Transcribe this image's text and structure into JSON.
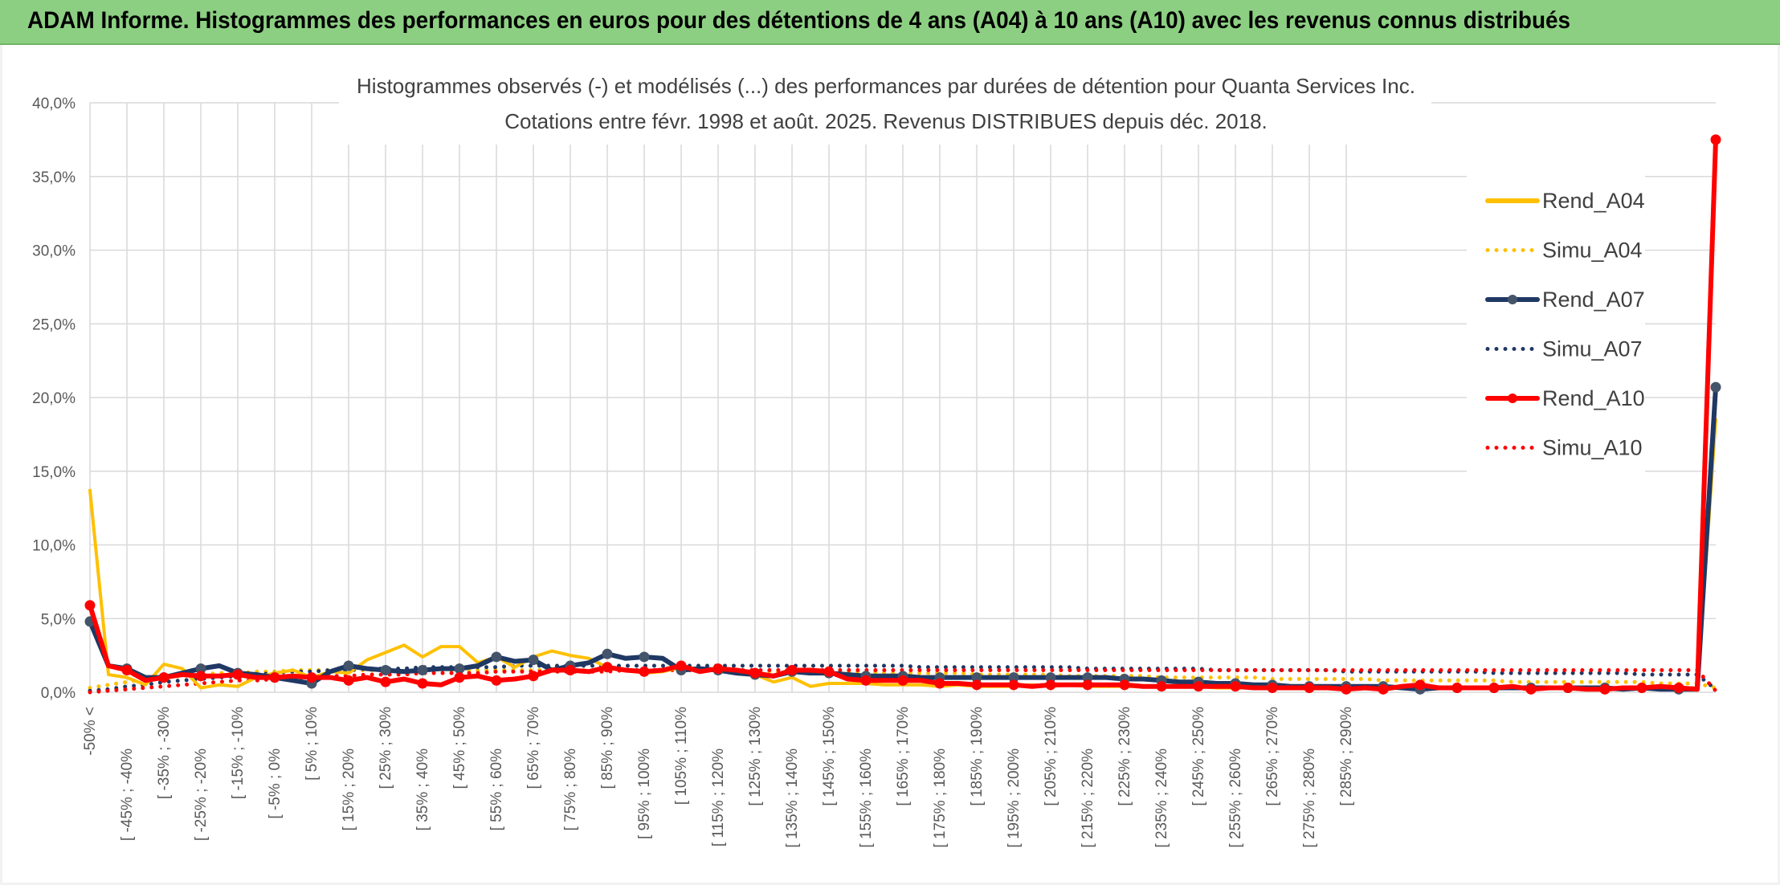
{
  "header": {
    "title": "ADAM Informe. Histogrammes des performances en euros pour des détentions de 4 ans (A04) à 10 ans (A10) avec les revenus connus distribués"
  },
  "chart_data": {
    "type": "line",
    "title": "Histogrammes observés (-) et modélisés (...) des performances par durées de détention pour Quanta Services Inc.",
    "subtitle": "Cotations entre févr. 1998 et août. 2025. Revenus DISTRIBUES depuis déc. 2018.",
    "xlabel": "",
    "ylabel": "",
    "ylim": [
      0,
      40
    ],
    "yticks": [
      "0,0%",
      "5,0%",
      "10,0%",
      "15,0%",
      "20,0%",
      "25,0%",
      "30,0%",
      "35,0%",
      "40,0%"
    ],
    "grid": true,
    "legend_position": "right",
    "x_tick_labels": [
      "-50% <",
      "[ -45% ; -40%",
      "[ -35% ; -30%",
      "[ -25% ; -20%",
      "[ -15% ; -10%",
      "[ -5% ; 0%",
      "[ 5% ; 10%",
      "[ 15% ; 20%",
      "[ 25% ; 30%",
      "[ 35% ; 40%",
      "[ 45% ; 50%",
      "[ 55% ; 60%",
      "[ 65% ; 70%",
      "[ 75% ; 80%",
      "[ 85% ; 90%",
      "[ 95% ; 100%",
      "[ 105% ; 110%",
      "[ 115% ; 120%",
      "[ 125% ; 130%",
      "[ 135% ; 140%",
      "[ 145% ; 150%",
      "[ 155% ; 160%",
      "[ 165% ; 170%",
      "[ 175% ; 180%",
      "[ 185% ; 190%",
      "[ 195% ; 200%",
      "[ 205% ; 210%",
      "[ 215% ; 220%",
      "[ 225% ; 230%",
      "[ 235% ; 240%",
      "[ 245% ; 250%",
      "[ 255% ; 260%",
      "[ 265% ; 270%",
      "[ 275% ; 280%",
      "[ 285% ; 290%"
    ],
    "series": [
      {
        "name": "Rend_A04",
        "style": "solid",
        "color": "#ffc000",
        "markers": false,
        "values": [
          13.7,
          1.2,
          1.0,
          0.5,
          1.9,
          1.6,
          0.3,
          0.5,
          0.4,
          1.0,
          1.3,
          1.5,
          1.0,
          1.4,
          1.3,
          2.2,
          2.7,
          3.2,
          2.4,
          3.1,
          3.1,
          2.0,
          2.4,
          1.7,
          2.4,
          2.8,
          2.5,
          2.3,
          1.7,
          1.5,
          1.3,
          1.4,
          1.7,
          1.6,
          1.5,
          1.4,
          1.2,
          0.7,
          1.0,
          0.4,
          0.6,
          0.6,
          0.6,
          0.5,
          0.5,
          0.5,
          0.4,
          0.5,
          0.4,
          0.4,
          0.4,
          0.5,
          0.4,
          0.5,
          0.4,
          0.4,
          0.4,
          0.4,
          0.4,
          0.4,
          0.4,
          0.3,
          0.3,
          0.3,
          0.3,
          0.3,
          0.3,
          0.3,
          0.3,
          0.3,
          0.3,
          0.3,
          0.3,
          0.3,
          0.3,
          0.3,
          0.3,
          0.3,
          0.3,
          0.3,
          0.3,
          0.3,
          0.3,
          0.3,
          0.3,
          0.3,
          0.3,
          0.3,
          18.5
        ]
      },
      {
        "name": "Simu_A04",
        "style": "dotted",
        "color": "#ffc000",
        "markers": false,
        "values": [
          0.3,
          0.5,
          0.7,
          0.9,
          1.0,
          1.1,
          1.2,
          1.3,
          1.3,
          1.4,
          1.4,
          1.5,
          1.5,
          1.5,
          1.5,
          1.5,
          1.5,
          1.5,
          1.5,
          1.5,
          1.5,
          1.5,
          1.5,
          1.5,
          1.5,
          1.5,
          1.5,
          1.5,
          1.5,
          1.5,
          1.5,
          1.5,
          1.5,
          1.5,
          1.5,
          1.5,
          1.5,
          1.4,
          1.4,
          1.4,
          1.4,
          1.4,
          1.4,
          1.3,
          1.3,
          1.3,
          1.3,
          1.3,
          1.2,
          1.2,
          1.2,
          1.2,
          1.2,
          1.1,
          1.1,
          1.1,
          1.1,
          1.1,
          1.0,
          1.0,
          1.0,
          1.0,
          1.0,
          1.0,
          0.9,
          0.9,
          0.9,
          0.9,
          0.9,
          0.9,
          0.8,
          0.8,
          0.8,
          0.8,
          0.8,
          0.8,
          0.8,
          0.7,
          0.7,
          0.7,
          0.7,
          0.7,
          0.7,
          0.7,
          0.7,
          0.6,
          0.6,
          0.6,
          0.3
        ]
      },
      {
        "name": "Rend_A07",
        "style": "solid",
        "color": "#1f3864",
        "markers": true,
        "values": [
          4.8,
          1.8,
          1.6,
          1.0,
          1.0,
          1.3,
          1.6,
          1.8,
          1.3,
          1.2,
          1.0,
          0.8,
          0.6,
          1.4,
          1.8,
          1.6,
          1.5,
          1.4,
          1.5,
          1.6,
          1.6,
          1.8,
          2.4,
          2.1,
          2.2,
          1.5,
          1.8,
          2.0,
          2.6,
          2.3,
          2.4,
          2.3,
          1.5,
          1.6,
          1.5,
          1.3,
          1.2,
          1.1,
          1.4,
          1.3,
          1.3,
          1.2,
          1.1,
          1.1,
          1.1,
          1.0,
          1.0,
          1.0,
          1.0,
          1.0,
          1.0,
          1.0,
          1.0,
          1.0,
          1.0,
          1.0,
          0.9,
          0.9,
          0.8,
          0.7,
          0.7,
          0.6,
          0.6,
          0.5,
          0.5,
          0.4,
          0.4,
          0.4,
          0.4,
          0.4,
          0.4,
          0.3,
          0.2,
          0.3,
          0.3,
          0.3,
          0.3,
          0.3,
          0.3,
          0.3,
          0.3,
          0.3,
          0.3,
          0.2,
          0.3,
          0.2,
          0.2,
          0.2,
          20.7
        ]
      },
      {
        "name": "Simu_A07",
        "style": "dotted",
        "color": "#1f3864",
        "markers": false,
        "values": [
          0.1,
          0.2,
          0.4,
          0.5,
          0.7,
          0.8,
          0.9,
          1.0,
          1.1,
          1.2,
          1.3,
          1.4,
          1.4,
          1.5,
          1.5,
          1.6,
          1.6,
          1.6,
          1.7,
          1.7,
          1.7,
          1.7,
          1.7,
          1.8,
          1.8,
          1.8,
          1.8,
          1.8,
          1.8,
          1.8,
          1.8,
          1.8,
          1.8,
          1.8,
          1.8,
          1.8,
          1.8,
          1.8,
          1.8,
          1.8,
          1.8,
          1.8,
          1.8,
          1.8,
          1.8,
          1.7,
          1.7,
          1.7,
          1.7,
          1.7,
          1.7,
          1.7,
          1.7,
          1.7,
          1.6,
          1.6,
          1.6,
          1.6,
          1.6,
          1.6,
          1.6,
          1.5,
          1.5,
          1.5,
          1.5,
          1.5,
          1.5,
          1.5,
          1.4,
          1.4,
          1.4,
          1.4,
          1.4,
          1.4,
          1.4,
          1.4,
          1.3,
          1.3,
          1.3,
          1.3,
          1.3,
          1.3,
          1.3,
          1.3,
          1.2,
          1.2,
          1.2,
          1.2,
          0.2
        ]
      },
      {
        "name": "Rend_A10",
        "style": "solid",
        "color": "#ff0000",
        "markers": true,
        "values": [
          5.9,
          1.8,
          1.5,
          0.8,
          1.0,
          1.2,
          1.1,
          1.1,
          1.2,
          1.0,
          1.0,
          1.1,
          1.0,
          1.0,
          0.8,
          1.0,
          0.7,
          0.9,
          0.6,
          0.5,
          1.0,
          1.1,
          0.8,
          0.9,
          1.1,
          1.5,
          1.5,
          1.4,
          1.7,
          1.5,
          1.4,
          1.5,
          1.8,
          1.4,
          1.6,
          1.5,
          1.3,
          1.1,
          1.5,
          1.5,
          1.4,
          0.9,
          0.8,
          0.8,
          0.8,
          0.8,
          0.6,
          0.6,
          0.5,
          0.5,
          0.5,
          0.4,
          0.5,
          0.5,
          0.5,
          0.5,
          0.5,
          0.4,
          0.4,
          0.4,
          0.4,
          0.4,
          0.4,
          0.3,
          0.3,
          0.3,
          0.3,
          0.3,
          0.2,
          0.3,
          0.2,
          0.4,
          0.5,
          0.3,
          0.3,
          0.3,
          0.3,
          0.4,
          0.2,
          0.3,
          0.3,
          0.2,
          0.2,
          0.3,
          0.3,
          0.4,
          0.3,
          0.2,
          37.5
        ]
      },
      {
        "name": "Simu_A10",
        "style": "dotted",
        "color": "#ff0000",
        "markers": false,
        "values": [
          0.0,
          0.1,
          0.2,
          0.3,
          0.4,
          0.5,
          0.6,
          0.7,
          0.8,
          0.8,
          0.9,
          1.0,
          1.0,
          1.1,
          1.1,
          1.2,
          1.2,
          1.2,
          1.3,
          1.3,
          1.3,
          1.3,
          1.4,
          1.4,
          1.4,
          1.4,
          1.4,
          1.4,
          1.4,
          1.5,
          1.5,
          1.5,
          1.5,
          1.5,
          1.5,
          1.5,
          1.5,
          1.5,
          1.5,
          1.5,
          1.5,
          1.5,
          1.5,
          1.5,
          1.5,
          1.5,
          1.5,
          1.5,
          1.5,
          1.5,
          1.5,
          1.5,
          1.5,
          1.5,
          1.5,
          1.5,
          1.5,
          1.5,
          1.5,
          1.5,
          1.5,
          1.5,
          1.5,
          1.5,
          1.5,
          1.5,
          1.5,
          1.5,
          1.5,
          1.5,
          1.5,
          1.5,
          1.5,
          1.5,
          1.5,
          1.5,
          1.5,
          1.5,
          1.5,
          1.5,
          1.5,
          1.5,
          1.5,
          1.5,
          1.5,
          1.5,
          1.5,
          1.5,
          0.1
        ]
      }
    ]
  }
}
